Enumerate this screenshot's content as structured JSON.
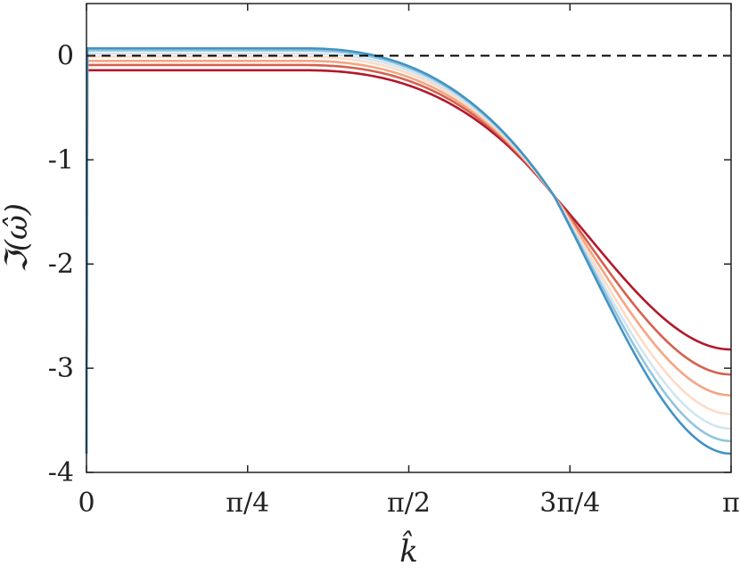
{
  "chart_data": {
    "type": "line",
    "xlabel": "k̂",
    "ylabel": "ℑ(ω̂)",
    "xlim": [
      0,
      3.14159
    ],
    "ylim": [
      -4,
      0.5
    ],
    "x_ticks": [
      {
        "value": 0,
        "label": "0"
      },
      {
        "value": 0.7854,
        "label": "π/4"
      },
      {
        "value": 1.5708,
        "label": "π/2"
      },
      {
        "value": 2.3562,
        "label": "3π/4"
      },
      {
        "value": 3.14159,
        "label": "π"
      }
    ],
    "y_ticks": [
      {
        "value": 0,
        "label": "0"
      },
      {
        "value": -1,
        "label": "-1"
      },
      {
        "value": -2,
        "label": "-2"
      },
      {
        "value": -3,
        "label": "-3"
      },
      {
        "value": -4,
        "label": "-4"
      }
    ],
    "grid": false,
    "reference_line": {
      "y": 0,
      "style": "dashed",
      "color": "#000000"
    },
    "series": [
      {
        "color": "#b2182b",
        "plateau": -0.14,
        "end": -2.82
      },
      {
        "color": "#d6604d",
        "plateau": -0.09,
        "end": -3.06
      },
      {
        "color": "#f4a582",
        "plateau": -0.05,
        "end": -3.26
      },
      {
        "color": "#fddbc7",
        "plateau": -0.01,
        "end": -3.44
      },
      {
        "color": "#d1e5f0",
        "plateau": 0.02,
        "end": -3.58
      },
      {
        "color": "#92c5de",
        "plateau": 0.05,
        "end": -3.7
      },
      {
        "color": "#4393c3",
        "plateau": 0.07,
        "end": -3.82
      }
    ],
    "crossing_point": {
      "x": 2.28,
      "y": -1.35
    },
    "start_value": -3.82
  }
}
